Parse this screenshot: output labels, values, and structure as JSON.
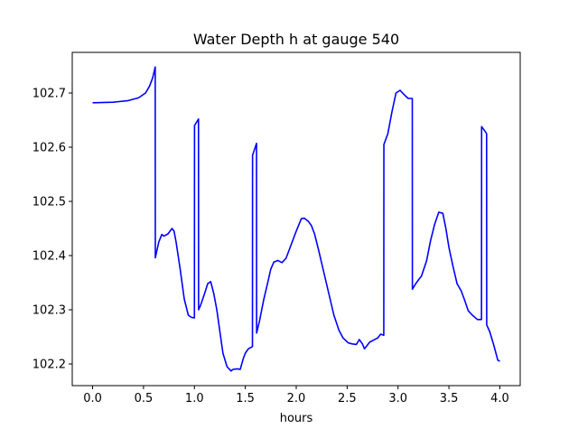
{
  "chart_data": {
    "type": "line",
    "title": "Water Depth h at gauge 540",
    "xlabel": "hours",
    "ylabel": "",
    "xlim": [
      -0.2,
      4.2
    ],
    "ylim": [
      102.16,
      102.775
    ],
    "x_ticks": [
      0.0,
      0.5,
      1.0,
      1.5,
      2.0,
      2.5,
      3.0,
      3.5,
      4.0
    ],
    "x_tick_labels": [
      "0.0",
      "0.5",
      "1.0",
      "1.5",
      "2.0",
      "2.5",
      "3.0",
      "3.5",
      "4.0"
    ],
    "y_ticks": [
      102.2,
      102.3,
      102.4,
      102.5,
      102.6,
      102.7
    ],
    "y_tick_labels": [
      "102.2",
      "102.3",
      "102.4",
      "102.5",
      "102.6",
      "102.7"
    ],
    "grid": false,
    "legend": "none",
    "series": [
      {
        "color": "#0000ff",
        "x": [
          0.0,
          0.2,
          0.35,
          0.45,
          0.52,
          0.56,
          0.59,
          0.615,
          0.616,
          0.65,
          0.68,
          0.7,
          0.74,
          0.78,
          0.8,
          0.82,
          0.86,
          0.9,
          0.94,
          0.97,
          1.0,
          1.001,
          1.04,
          1.041,
          1.06,
          1.1,
          1.13,
          1.16,
          1.19,
          1.22,
          1.25,
          1.28,
          1.32,
          1.36,
          1.38,
          1.42,
          1.45,
          1.48,
          1.5,
          1.53,
          1.57,
          1.571,
          1.61,
          1.611,
          1.64,
          1.68,
          1.72,
          1.75,
          1.78,
          1.82,
          1.86,
          1.9,
          1.95,
          2.0,
          2.05,
          2.08,
          2.12,
          2.15,
          2.18,
          2.22,
          2.27,
          2.32,
          2.37,
          2.42,
          2.46,
          2.51,
          2.55,
          2.59,
          2.62,
          2.65,
          2.67,
          2.7,
          2.72,
          2.76,
          2.8,
          2.83,
          2.86,
          2.861,
          2.9,
          2.94,
          2.98,
          3.02,
          3.06,
          3.1,
          3.14,
          3.141,
          3.17,
          3.2,
          3.23,
          3.28,
          3.32,
          3.36,
          3.4,
          3.44,
          3.47,
          3.5,
          3.54,
          3.58,
          3.62,
          3.65,
          3.69,
          3.73,
          3.78,
          3.82,
          3.821,
          3.86,
          3.87,
          3.871,
          3.9,
          3.94,
          3.98,
          4.0
        ],
        "y": [
          102.682,
          102.683,
          102.686,
          102.691,
          102.7,
          102.713,
          102.728,
          102.748,
          102.396,
          102.425,
          102.439,
          102.436,
          102.44,
          102.45,
          102.445,
          102.425,
          102.375,
          102.32,
          102.29,
          102.286,
          102.285,
          102.64,
          102.652,
          102.3,
          102.308,
          102.33,
          102.348,
          102.352,
          102.33,
          102.3,
          102.26,
          102.22,
          102.195,
          102.187,
          102.19,
          102.191,
          102.19,
          102.21,
          102.22,
          102.228,
          102.232,
          102.585,
          102.607,
          102.257,
          102.28,
          102.318,
          102.35,
          102.375,
          102.388,
          102.391,
          102.387,
          102.395,
          102.42,
          102.445,
          102.468,
          102.469,
          102.463,
          102.455,
          102.44,
          102.41,
          102.37,
          102.33,
          102.29,
          102.262,
          102.248,
          102.239,
          102.237,
          102.236,
          102.245,
          102.237,
          102.228,
          102.235,
          102.24,
          102.244,
          102.248,
          102.255,
          102.253,
          102.605,
          102.625,
          102.665,
          102.7,
          102.705,
          102.697,
          102.69,
          102.69,
          102.338,
          102.347,
          102.355,
          102.362,
          102.39,
          102.428,
          102.458,
          102.48,
          102.478,
          102.45,
          102.415,
          102.38,
          102.348,
          102.335,
          102.32,
          102.298,
          102.29,
          102.282,
          102.282,
          102.638,
          102.628,
          102.625,
          102.272,
          102.26,
          102.235,
          102.207,
          102.205
        ]
      }
    ]
  }
}
